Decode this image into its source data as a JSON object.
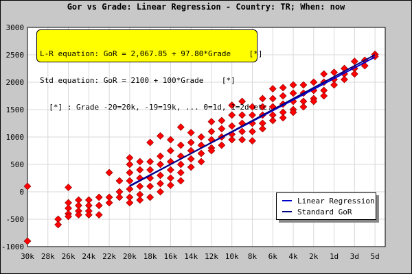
{
  "title": "Gor vs Grade: Linear Regression - Country: TR; When: now",
  "equations": {
    "line1": "L-R equation: GoR = 2,067.85 + 97.80*Grade    [*]",
    "line2": "Std equation: GoR = 2100 + 100*Grade    [*]",
    "line3": "  [*] : Grade -20=20k, -19=19k, ... 0=1d, 1=2d etc."
  },
  "legend": [
    {
      "label": "Linear Regression",
      "color": "#0000cc"
    },
    {
      "label": "Standard GoR",
      "color": "#000080"
    }
  ],
  "colors": {
    "point_fill": "#ff0000",
    "point_stroke": "#800000",
    "plot_bg": "#ffffff",
    "grid": "#d8d8d8",
    "box_bg": "#ffff00"
  },
  "chart_data": {
    "type": "scatter",
    "title": "Gor vs Grade: Linear Regression - Country: TR; When: now",
    "xlabel": "",
    "ylabel": "",
    "xlim": [
      -30,
      5
    ],
    "ylim": [
      -1000,
      3000
    ],
    "grid": true,
    "legend_position": "bottom-right",
    "x_ticks": [
      {
        "value": -30,
        "label": "30k"
      },
      {
        "value": -28,
        "label": "28k"
      },
      {
        "value": -26,
        "label": "26k"
      },
      {
        "value": -24,
        "label": "24k"
      },
      {
        "value": -22,
        "label": "22k"
      },
      {
        "value": -20,
        "label": "20k"
      },
      {
        "value": -18,
        "label": "18k"
      },
      {
        "value": -16,
        "label": "16k"
      },
      {
        "value": -14,
        "label": "14k"
      },
      {
        "value": -12,
        "label": "12k"
      },
      {
        "value": -10,
        "label": "10k"
      },
      {
        "value": -8,
        "label": "8k"
      },
      {
        "value": -6,
        "label": "6k"
      },
      {
        "value": -4,
        "label": "4k"
      },
      {
        "value": -2,
        "label": "2k"
      },
      {
        "value": 0,
        "label": "1d"
      },
      {
        "value": 2,
        "label": "3d"
      },
      {
        "value": 4,
        "label": "5d"
      }
    ],
    "y_ticks": [
      -1000,
      -500,
      0,
      500,
      1000,
      1500,
      2000,
      2500,
      3000
    ],
    "series": [
      {
        "name": "Linear Regression",
        "type": "line",
        "x": [
          -20,
          4
        ],
        "y": [
          112,
          2459
        ]
      },
      {
        "name": "Standard GoR",
        "type": "line",
        "x": [
          -20,
          4
        ],
        "y": [
          100,
          2500
        ]
      }
    ],
    "points": [
      {
        "x": -30,
        "y": 100
      },
      {
        "x": -30,
        "y": -900
      },
      {
        "x": -27,
        "y": -500
      },
      {
        "x": -27,
        "y": -600
      },
      {
        "x": -26,
        "y": 80
      },
      {
        "x": -26,
        "y": -200
      },
      {
        "x": -26,
        "y": -300
      },
      {
        "x": -26,
        "y": -400
      },
      {
        "x": -26,
        "y": -450
      },
      {
        "x": -25,
        "y": -150
      },
      {
        "x": -25,
        "y": -250
      },
      {
        "x": -25,
        "y": -350
      },
      {
        "x": -25,
        "y": -420
      },
      {
        "x": -24,
        "y": -150
      },
      {
        "x": -24,
        "y": -250
      },
      {
        "x": -24,
        "y": -350
      },
      {
        "x": -24,
        "y": -420
      },
      {
        "x": -23,
        "y": -100
      },
      {
        "x": -23,
        "y": -250
      },
      {
        "x": -23,
        "y": -420
      },
      {
        "x": -22,
        "y": 350
      },
      {
        "x": -22,
        "y": -100
      },
      {
        "x": -22,
        "y": -200
      },
      {
        "x": -21,
        "y": 200
      },
      {
        "x": -21,
        "y": 0
      },
      {
        "x": -21,
        "y": -100
      },
      {
        "x": -20,
        "y": 620
      },
      {
        "x": -20,
        "y": 500
      },
      {
        "x": -20,
        "y": 350
      },
      {
        "x": -20,
        "y": 200
      },
      {
        "x": -20,
        "y": 50
      },
      {
        "x": -20,
        "y": -100
      },
      {
        "x": -20,
        "y": -200
      },
      {
        "x": -19,
        "y": 550
      },
      {
        "x": -19,
        "y": 400
      },
      {
        "x": -19,
        "y": 250
      },
      {
        "x": -19,
        "y": 100
      },
      {
        "x": -19,
        "y": -50
      },
      {
        "x": -19,
        "y": -150
      },
      {
        "x": -18,
        "y": 900
      },
      {
        "x": -18,
        "y": 550
      },
      {
        "x": -18,
        "y": 400
      },
      {
        "x": -18,
        "y": 250
      },
      {
        "x": -18,
        "y": 100
      },
      {
        "x": -18,
        "y": -100
      },
      {
        "x": -17,
        "y": 1020
      },
      {
        "x": -17,
        "y": 650
      },
      {
        "x": -17,
        "y": 500
      },
      {
        "x": -17,
        "y": 300
      },
      {
        "x": -17,
        "y": 150
      },
      {
        "x": -17,
        "y": 0
      },
      {
        "x": -16,
        "y": 950
      },
      {
        "x": -16,
        "y": 750
      },
      {
        "x": -16,
        "y": 550
      },
      {
        "x": -16,
        "y": 400
      },
      {
        "x": -16,
        "y": 250
      },
      {
        "x": -16,
        "y": 120
      },
      {
        "x": -15,
        "y": 1180
      },
      {
        "x": -15,
        "y": 850
      },
      {
        "x": -15,
        "y": 650
      },
      {
        "x": -15,
        "y": 500
      },
      {
        "x": -15,
        "y": 350
      },
      {
        "x": -15,
        "y": 200
      },
      {
        "x": -14,
        "y": 1080
      },
      {
        "x": -14,
        "y": 900
      },
      {
        "x": -14,
        "y": 750
      },
      {
        "x": -14,
        "y": 600
      },
      {
        "x": -14,
        "y": 450
      },
      {
        "x": -13,
        "y": 1000
      },
      {
        "x": -13,
        "y": 850
      },
      {
        "x": -13,
        "y": 700
      },
      {
        "x": -13,
        "y": 550
      },
      {
        "x": -12,
        "y": 1280
      },
      {
        "x": -12,
        "y": 1100
      },
      {
        "x": -12,
        "y": 950
      },
      {
        "x": -12,
        "y": 800
      },
      {
        "x": -12,
        "y": 750
      },
      {
        "x": -11,
        "y": 1300
      },
      {
        "x": -11,
        "y": 1150
      },
      {
        "x": -11,
        "y": 1000
      },
      {
        "x": -11,
        "y": 850
      },
      {
        "x": -10,
        "y": 1580
      },
      {
        "x": -10,
        "y": 1400
      },
      {
        "x": -10,
        "y": 1200
      },
      {
        "x": -10,
        "y": 1050
      },
      {
        "x": -10,
        "y": 950
      },
      {
        "x": -9,
        "y": 1650
      },
      {
        "x": -9,
        "y": 1400
      },
      {
        "x": -9,
        "y": 1250
      },
      {
        "x": -9,
        "y": 1100
      },
      {
        "x": -9,
        "y": 950
      },
      {
        "x": -8,
        "y": 1550
      },
      {
        "x": -8,
        "y": 1400
      },
      {
        "x": -8,
        "y": 1250
      },
      {
        "x": -8,
        "y": 1100
      },
      {
        "x": -8,
        "y": 930
      },
      {
        "x": -7,
        "y": 1700
      },
      {
        "x": -7,
        "y": 1550
      },
      {
        "x": -7,
        "y": 1400
      },
      {
        "x": -7,
        "y": 1250
      },
      {
        "x": -7,
        "y": 1150
      },
      {
        "x": -6,
        "y": 1880
      },
      {
        "x": -6,
        "y": 1700
      },
      {
        "x": -6,
        "y": 1550
      },
      {
        "x": -6,
        "y": 1400
      },
      {
        "x": -6,
        "y": 1300
      },
      {
        "x": -5,
        "y": 1900
      },
      {
        "x": -5,
        "y": 1750
      },
      {
        "x": -5,
        "y": 1600
      },
      {
        "x": -5,
        "y": 1450
      },
      {
        "x": -5,
        "y": 1350
      },
      {
        "x": -4,
        "y": 1950
      },
      {
        "x": -4,
        "y": 1800
      },
      {
        "x": -4,
        "y": 1650
      },
      {
        "x": -4,
        "y": 1500
      },
      {
        "x": -4,
        "y": 1450
      },
      {
        "x": -3,
        "y": 1950
      },
      {
        "x": -3,
        "y": 1800
      },
      {
        "x": -3,
        "y": 1650
      },
      {
        "x": -3,
        "y": 1550
      },
      {
        "x": -2,
        "y": 2000
      },
      {
        "x": -2,
        "y": 1850
      },
      {
        "x": -2,
        "y": 1700
      },
      {
        "x": -2,
        "y": 1650
      },
      {
        "x": -1,
        "y": 2150
      },
      {
        "x": -1,
        "y": 2000
      },
      {
        "x": -1,
        "y": 1850
      },
      {
        "x": -1,
        "y": 1750
      },
      {
        "x": 0,
        "y": 2180
      },
      {
        "x": 0,
        "y": 2050
      },
      {
        "x": 0,
        "y": 1950
      },
      {
        "x": 1,
        "y": 2250
      },
      {
        "x": 1,
        "y": 2150
      },
      {
        "x": 1,
        "y": 2050
      },
      {
        "x": 2,
        "y": 2380
      },
      {
        "x": 2,
        "y": 2250
      },
      {
        "x": 2,
        "y": 2150
      },
      {
        "x": 3,
        "y": 2400
      },
      {
        "x": 3,
        "y": 2300
      },
      {
        "x": 4,
        "y": 2510
      },
      {
        "x": 4,
        "y": 2470
      }
    ]
  }
}
